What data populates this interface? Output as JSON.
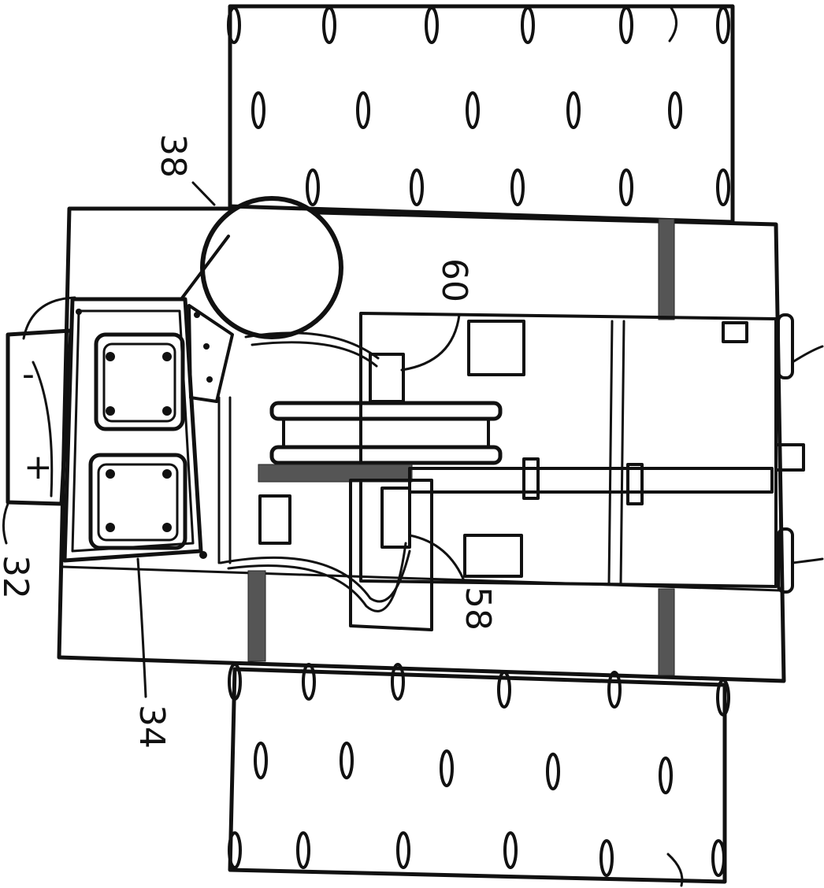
{
  "figure": {
    "labels": {
      "ref_38": "38",
      "ref_60": "60",
      "ref_58": "58",
      "ref_32": "32",
      "ref_34": "34",
      "battery_minus": "-",
      "battery_plus": "+"
    }
  }
}
